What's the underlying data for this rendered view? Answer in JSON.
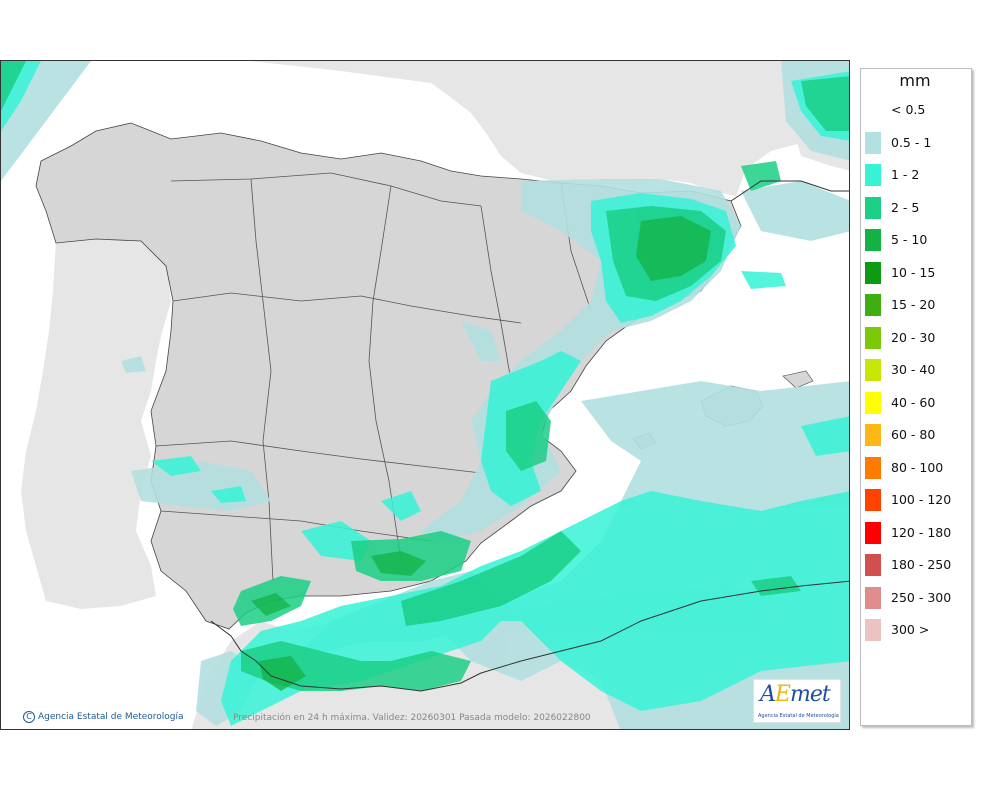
{
  "map": {
    "caption": "Precipitación en 24 h máxima. Validez: 20260301 Pasada modelo: 2026022800",
    "credit": "Agencia Estatal de Meteorología",
    "credit_symbol": "C",
    "logo": {
      "mark_prefix": "A",
      "mark_e": "E",
      "mark_suffix": "met",
      "subtitle": "Agencia Estatal de Meteorología"
    },
    "colors": {
      "land": "#d9d9d9",
      "sea": "#ffffff",
      "border": "#333333"
    }
  },
  "legend": {
    "unit": "mm",
    "items": [
      {
        "label": "< 0.5",
        "color": "#ffffff"
      },
      {
        "label": "0.5 - 1",
        "color": "#b2dfe0"
      },
      {
        "label": "1 - 2",
        "color": "#36f3d6"
      },
      {
        "label": "2 - 5",
        "color": "#1bcf86"
      },
      {
        "label": "5 - 10",
        "color": "#13b246"
      },
      {
        "label": "10 - 15",
        "color": "#0e9a12"
      },
      {
        "label": "15 - 20",
        "color": "#3fae12"
      },
      {
        "label": "20 - 30",
        "color": "#7cc90a"
      },
      {
        "label": "30 - 40",
        "color": "#c7e605"
      },
      {
        "label": "40 - 60",
        "color": "#ffff00"
      },
      {
        "label": "60 - 80",
        "color": "#fdb714"
      },
      {
        "label": "80 - 100",
        "color": "#ff7b00"
      },
      {
        "label": "100 - 120",
        "color": "#ff4200"
      },
      {
        "label": "120 - 180",
        "color": "#ff0000"
      },
      {
        "label": "180 - 250",
        "color": "#d05050"
      },
      {
        "label": "250 - 300",
        "color": "#de8c8c"
      },
      {
        "label": "300 >",
        "color": "#ecc3c3"
      }
    ]
  }
}
